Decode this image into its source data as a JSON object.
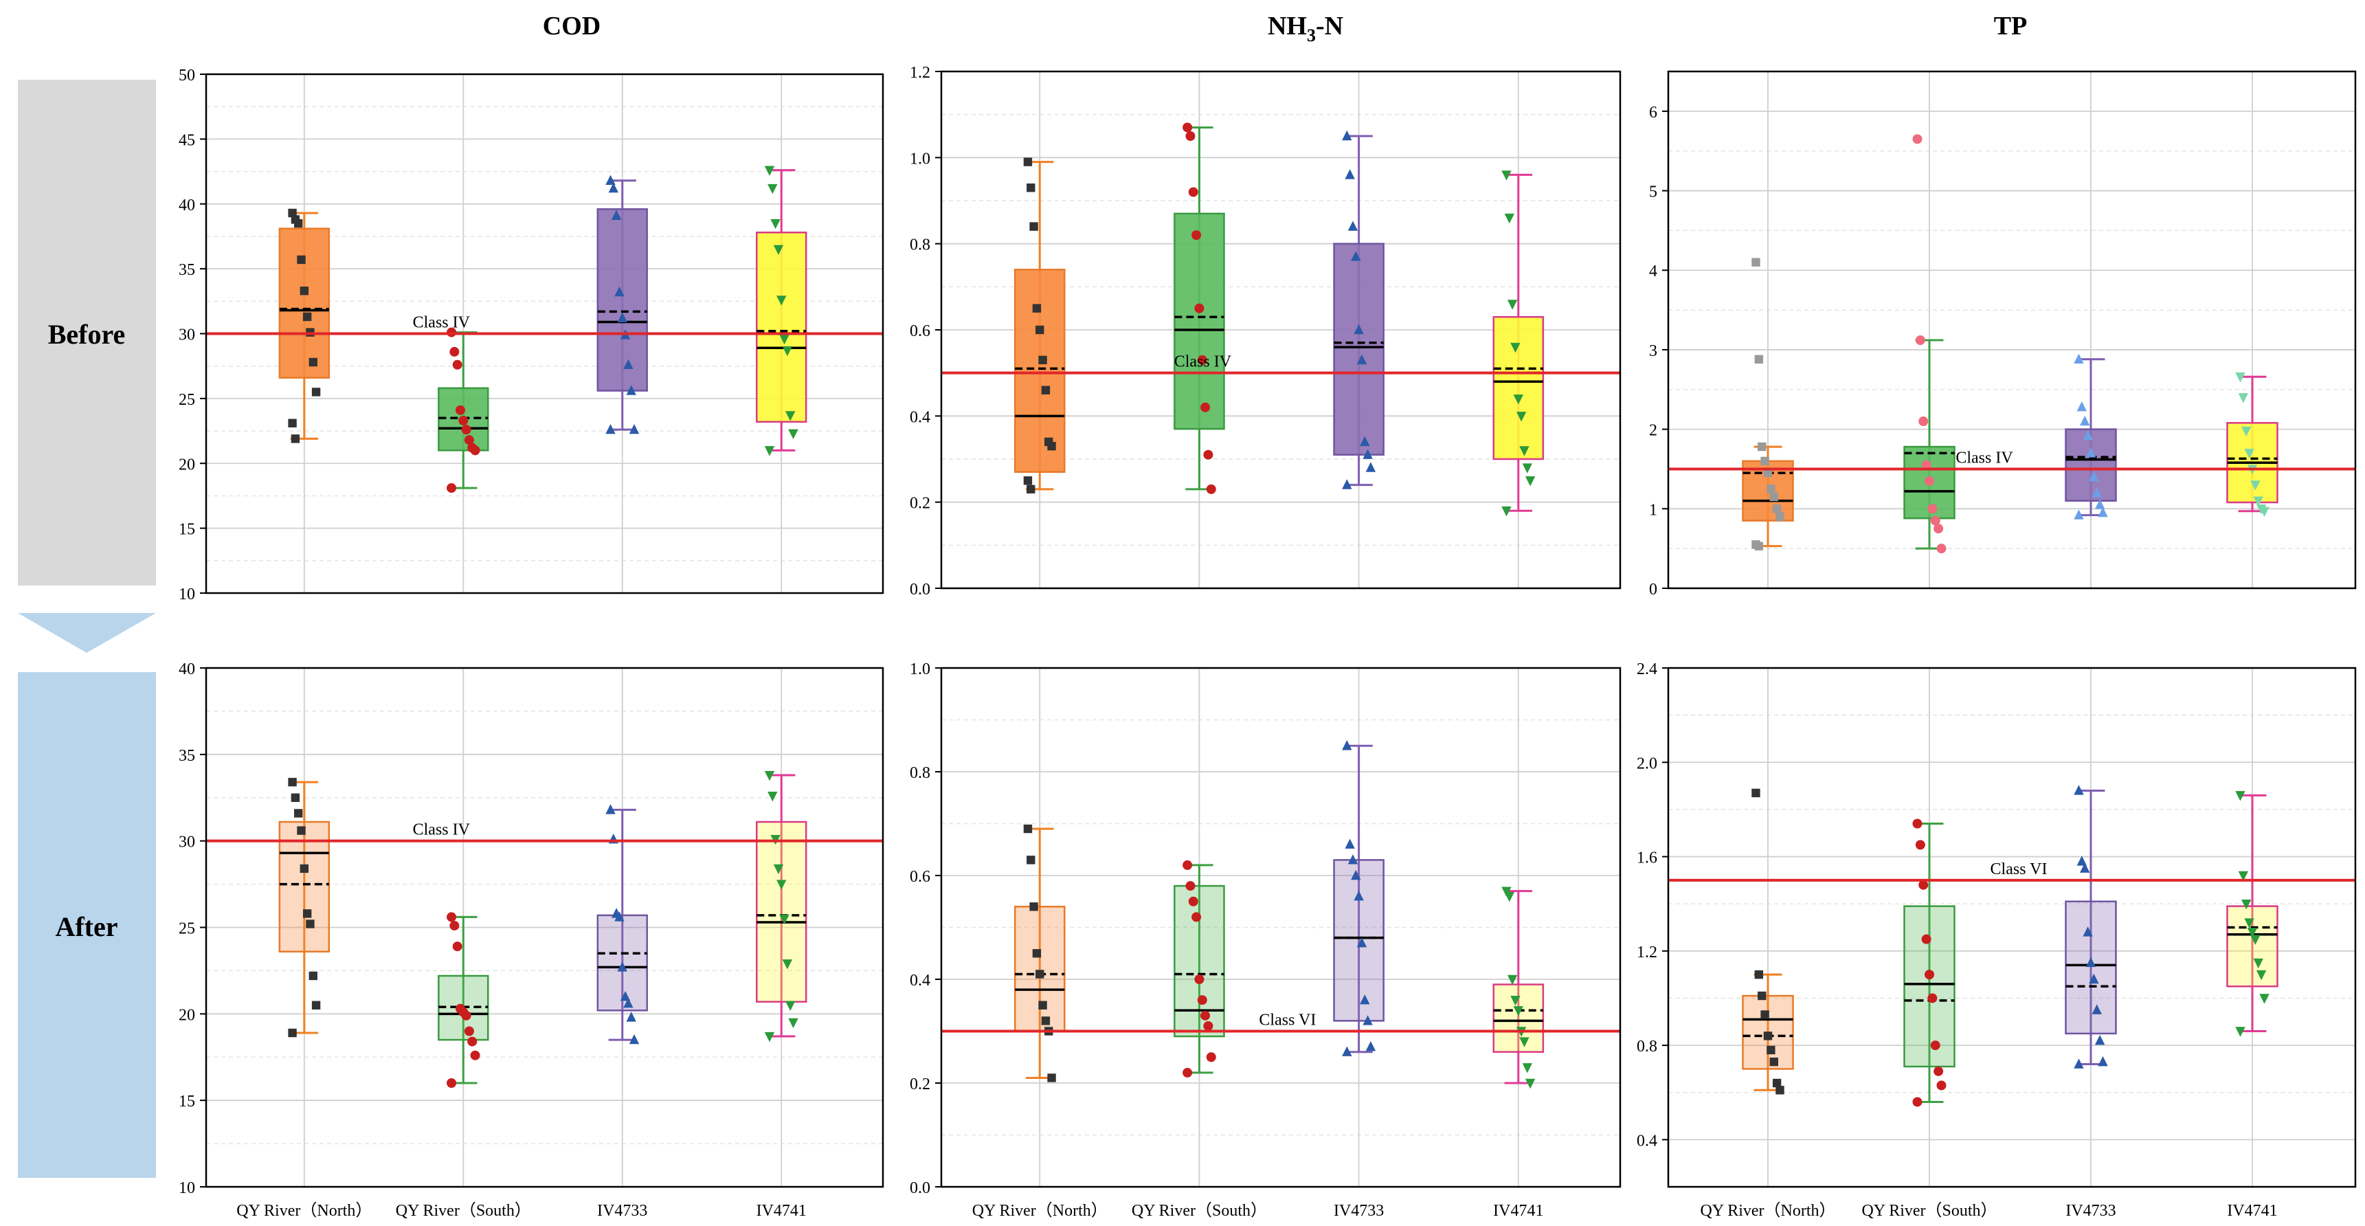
{
  "row_labels": {
    "before": "Before",
    "after": "After"
  },
  "column_titles": {
    "cod": "COD",
    "nh3n": {
      "prefix": "NH",
      "subscript": "3",
      "suffix": "-N"
    },
    "tp": "TP"
  },
  "colors": {
    "box_fills": [
      "#f7883a",
      "#5abb5e",
      "#8d70b2",
      "#fdfa37"
    ],
    "box_edges": [
      "#e87a2a",
      "#3a9a40",
      "#6f55a0",
      "#d93a88"
    ],
    "whisker_colors": [
      "#f07f20",
      "#3da042",
      "#7d5eb0",
      "#e03a94"
    ],
    "point_colors": [
      "#333333",
      "#c81e1e",
      "#2a5aa8",
      "#2a9a3a"
    ],
    "point_colors_before_tp": [
      "#999999",
      "#ee6a7c",
      "#6aa0e8",
      "#7ad6a8"
    ],
    "reference_line": "#e0262a",
    "arrow_before": "#d9d9d9",
    "arrow_after": "#b8d5ec"
  },
  "chart_data": [
    {
      "id": "cod-before",
      "type": "box",
      "row": "Before",
      "title": "COD",
      "categories": [
        "QY River（North）",
        "QY River（South）",
        "IV4733",
        "IV4741"
      ],
      "ylim": [
        10,
        50
      ],
      "yticks": [
        10,
        15,
        20,
        25,
        30,
        35,
        40,
        45,
        50
      ],
      "ytick_format": 0,
      "show_xticklabels": false,
      "reference": {
        "value": 30,
        "label": "Class IV",
        "label_at": 1.85
      },
      "series": [
        {
          "category": "QY River（North）",
          "q1": 26.6,
          "median": 31.8,
          "q3": 38.1,
          "mean": 31.9,
          "whisker_low": 21.9,
          "whisker_high": 39.3,
          "points": [
            39.3,
            38.8,
            38.5,
            35.7,
            33.3,
            31.3,
            30.1,
            27.8,
            25.5,
            23.1,
            21.9
          ]
        },
        {
          "category": "QY River（South）",
          "q1": 21.0,
          "median": 22.7,
          "q3": 25.8,
          "mean": 23.5,
          "whisker_low": 18.1,
          "whisker_high": 30.1,
          "points": [
            30.1,
            28.6,
            27.6,
            24.1,
            23.3,
            22.6,
            21.8,
            21.2,
            21.0,
            18.1
          ]
        },
        {
          "category": "IV4733",
          "q1": 25.6,
          "median": 30.9,
          "q3": 39.6,
          "mean": 31.7,
          "whisker_low": 22.6,
          "whisker_high": 41.8,
          "points": [
            41.8,
            41.2,
            39.1,
            33.2,
            31.2,
            29.9,
            27.6,
            25.6,
            22.6,
            22.6
          ]
        },
        {
          "category": "IV4741",
          "q1": 23.2,
          "median": 28.9,
          "q3": 37.8,
          "mean": 30.2,
          "whisker_low": 21.0,
          "whisker_high": 42.6,
          "points": [
            42.6,
            41.2,
            38.5,
            36.5,
            32.6,
            29.6,
            28.7,
            23.7,
            22.3,
            21.0
          ]
        }
      ]
    },
    {
      "id": "nh3n-before",
      "type": "box",
      "row": "Before",
      "title": "NH3-N",
      "categories": [
        "QY River（North）",
        "QY River（South）",
        "IV4733",
        "IV4741"
      ],
      "ylim": [
        0,
        1.2
      ],
      "yticks": [
        0,
        0.2,
        0.4,
        0.6,
        0.8,
        1.0,
        1.2
      ],
      "ytick_format": 1,
      "show_xticklabels": false,
      "reference": {
        "value": 0.5,
        "label": "Class IV",
        "label_at": 2.0
      },
      "series": [
        {
          "category": "QY River（North）",
          "q1": 0.27,
          "median": 0.4,
          "q3": 0.74,
          "mean": 0.51,
          "whisker_low": 0.23,
          "whisker_high": 0.99,
          "points": [
            0.99,
            0.93,
            0.84,
            0.65,
            0.6,
            0.53,
            0.46,
            0.34,
            0.33,
            0.25,
            0.23
          ]
        },
        {
          "category": "QY River（South）",
          "q1": 0.37,
          "median": 0.6,
          "q3": 0.87,
          "mean": 0.63,
          "whisker_low": 0.23,
          "whisker_high": 1.07,
          "points": [
            1.07,
            1.05,
            0.92,
            0.82,
            0.65,
            0.53,
            0.42,
            0.31,
            0.23
          ]
        },
        {
          "category": "IV4733",
          "q1": 0.31,
          "median": 0.56,
          "q3": 0.8,
          "mean": 0.57,
          "whisker_low": 0.24,
          "whisker_high": 1.05,
          "points": [
            1.05,
            0.96,
            0.84,
            0.77,
            0.6,
            0.53,
            0.34,
            0.31,
            0.28,
            0.24
          ]
        },
        {
          "category": "IV4741",
          "q1": 0.3,
          "median": 0.48,
          "q3": 0.63,
          "mean": 0.51,
          "whisker_low": 0.18,
          "whisker_high": 0.96,
          "points": [
            0.96,
            0.86,
            0.66,
            0.56,
            0.44,
            0.4,
            0.32,
            0.28,
            0.25,
            0.18
          ]
        }
      ]
    },
    {
      "id": "tp-before",
      "type": "box",
      "row": "Before",
      "title": "TP",
      "categories": [
        "QY River（North）",
        "QY River（South）",
        "IV4733",
        "IV4741"
      ],
      "ylim": [
        0,
        6.5
      ],
      "yticks": [
        0,
        1,
        2,
        3,
        4,
        5,
        6
      ],
      "ytick_format": 0,
      "show_xticklabels": false,
      "reference": {
        "value": 1.5,
        "label": "Class IV",
        "label_at": 2.3
      },
      "series": [
        {
          "category": "QY River（North）",
          "q1": 0.85,
          "median": 1.1,
          "q3": 1.6,
          "mean": 1.45,
          "whisker_low": 0.53,
          "whisker_high": 1.78,
          "points": [
            4.1,
            2.88,
            1.78,
            1.6,
            1.45,
            1.25,
            1.15,
            1.0,
            0.9,
            0.55,
            0.53
          ]
        },
        {
          "category": "QY River（South）",
          "q1": 0.88,
          "median": 1.22,
          "q3": 1.78,
          "mean": 1.7,
          "whisker_low": 0.5,
          "whisker_high": 3.12,
          "points": [
            5.65,
            3.12,
            2.1,
            1.55,
            1.35,
            1.0,
            0.85,
            0.75,
            0.5
          ]
        },
        {
          "category": "IV4733",
          "q1": 1.1,
          "median": 1.62,
          "q3": 2.0,
          "mean": 1.65,
          "whisker_low": 0.92,
          "whisker_high": 2.88,
          "points": [
            2.88,
            2.28,
            2.1,
            1.92,
            1.7,
            1.4,
            1.2,
            1.05,
            0.95,
            0.92
          ]
        },
        {
          "category": "IV4741",
          "q1": 1.08,
          "median": 1.58,
          "q3": 2.08,
          "mean": 1.63,
          "whisker_low": 0.97,
          "whisker_high": 2.66,
          "points": [
            2.66,
            2.4,
            1.98,
            1.7,
            1.5,
            1.3,
            1.1,
            1.0,
            0.97
          ]
        }
      ]
    },
    {
      "id": "cod-after",
      "type": "box",
      "row": "After",
      "title": "COD",
      "categories": [
        "QY River（North）",
        "QY River（South）",
        "IV4733",
        "IV4741"
      ],
      "ylim": [
        10,
        40
      ],
      "yticks": [
        10,
        15,
        20,
        25,
        30,
        35,
        40
      ],
      "ytick_format": 0,
      "show_xticklabels": true,
      "reference": {
        "value": 30,
        "label": "Class IV",
        "label_at": 1.85
      },
      "series": [
        {
          "category": "QY River（North）",
          "q1": 23.6,
          "median": 29.3,
          "q3": 31.1,
          "mean": 27.5,
          "whisker_low": 18.9,
          "whisker_high": 33.4,
          "points": [
            33.4,
            32.5,
            31.6,
            30.6,
            28.4,
            25.8,
            25.2,
            22.2,
            20.5,
            18.9
          ]
        },
        {
          "category": "QY River（South）",
          "q1": 18.5,
          "median": 20.0,
          "q3": 22.2,
          "mean": 20.4,
          "whisker_low": 16.0,
          "whisker_high": 25.6,
          "points": [
            25.6,
            25.1,
            23.9,
            20.3,
            20.1,
            19.9,
            19.0,
            18.4,
            17.6,
            16.0
          ]
        },
        {
          "category": "IV4733",
          "q1": 20.2,
          "median": 22.7,
          "q3": 25.7,
          "mean": 23.5,
          "whisker_low": 18.5,
          "whisker_high": 31.8,
          "points": [
            31.8,
            30.1,
            25.8,
            25.6,
            22.7,
            21.0,
            20.6,
            19.8,
            18.5
          ]
        },
        {
          "category": "IV4741",
          "q1": 20.7,
          "median": 25.3,
          "q3": 31.1,
          "mean": 25.7,
          "whisker_low": 18.7,
          "whisker_high": 33.8,
          "points": [
            33.8,
            32.6,
            30.1,
            28.4,
            27.5,
            25.5,
            22.9,
            20.5,
            19.5,
            18.7
          ]
        }
      ]
    },
    {
      "id": "nh3n-after",
      "type": "box",
      "row": "After",
      "title": "NH3-N",
      "categories": [
        "QY River（North）",
        "QY River（South）",
        "IV4733",
        "IV4741"
      ],
      "ylim": [
        0,
        1.0
      ],
      "yticks": [
        0,
        0.2,
        0.4,
        0.6,
        0.8,
        1.0
      ],
      "ytick_format": 1,
      "show_xticklabels": true,
      "reference": {
        "value": 0.3,
        "label": "Class VI",
        "label_at": 2.5
      },
      "series": [
        {
          "category": "QY River（North）",
          "q1": 0.3,
          "median": 0.38,
          "q3": 0.54,
          "mean": 0.41,
          "whisker_low": 0.21,
          "whisker_high": 0.69,
          "points": [
            0.69,
            0.63,
            0.54,
            0.45,
            0.41,
            0.35,
            0.32,
            0.3,
            0.21
          ]
        },
        {
          "category": "QY River（South）",
          "q1": 0.29,
          "median": 0.34,
          "q3": 0.58,
          "mean": 0.41,
          "whisker_low": 0.22,
          "whisker_high": 0.62,
          "points": [
            0.62,
            0.58,
            0.55,
            0.52,
            0.4,
            0.36,
            0.33,
            0.31,
            0.25,
            0.22
          ]
        },
        {
          "category": "IV4733",
          "q1": 0.32,
          "median": 0.48,
          "q3": 0.63,
          "mean": 0.48,
          "whisker_low": 0.26,
          "whisker_high": 0.85,
          "points": [
            0.85,
            0.66,
            0.63,
            0.6,
            0.56,
            0.47,
            0.36,
            0.32,
            0.27,
            0.26
          ]
        },
        {
          "category": "IV4741",
          "q1": 0.26,
          "median": 0.32,
          "q3": 0.39,
          "mean": 0.34,
          "whisker_low": 0.2,
          "whisker_high": 0.57,
          "points": [
            0.57,
            0.56,
            0.4,
            0.36,
            0.34,
            0.3,
            0.28,
            0.23,
            0.2
          ]
        }
      ]
    },
    {
      "id": "tp-after",
      "type": "box",
      "row": "After",
      "title": "TP",
      "categories": [
        "QY River（North）",
        "QY River（South）",
        "IV4733",
        "IV4741"
      ],
      "ylim": [
        0.2,
        2.4
      ],
      "yticks": [
        0.4,
        0.8,
        1.2,
        1.6,
        2.0,
        2.4
      ],
      "ytick_format": 1,
      "show_xticklabels": true,
      "reference": {
        "value": 1.5,
        "label": "Class VI",
        "label_at": 2.5
      },
      "series": [
        {
          "category": "QY River（North）",
          "q1": 0.7,
          "median": 0.91,
          "q3": 1.01,
          "mean": 0.84,
          "whisker_low": 0.61,
          "whisker_high": 1.1,
          "points": [
            1.87,
            1.1,
            1.01,
            0.93,
            0.84,
            0.78,
            0.73,
            0.64,
            0.61
          ]
        },
        {
          "category": "QY River（South）",
          "q1": 0.71,
          "median": 1.06,
          "q3": 1.39,
          "mean": 0.99,
          "whisker_low": 0.56,
          "whisker_high": 1.74,
          "points": [
            1.74,
            1.65,
            1.48,
            1.25,
            1.1,
            1.0,
            0.8,
            0.69,
            0.63,
            0.56
          ]
        },
        {
          "category": "IV4733",
          "q1": 0.85,
          "median": 1.14,
          "q3": 1.41,
          "mean": 1.05,
          "whisker_low": 0.72,
          "whisker_high": 1.88,
          "points": [
            1.88,
            1.58,
            1.55,
            1.28,
            1.15,
            1.08,
            0.95,
            0.82,
            0.73,
            0.72
          ]
        },
        {
          "category": "IV4741",
          "q1": 1.05,
          "median": 1.27,
          "q3": 1.39,
          "mean": 1.3,
          "whisker_low": 0.86,
          "whisker_high": 1.86,
          "points": [
            1.86,
            1.52,
            1.4,
            1.32,
            1.28,
            1.25,
            1.15,
            1.1,
            1.0,
            0.86
          ]
        }
      ]
    }
  ]
}
